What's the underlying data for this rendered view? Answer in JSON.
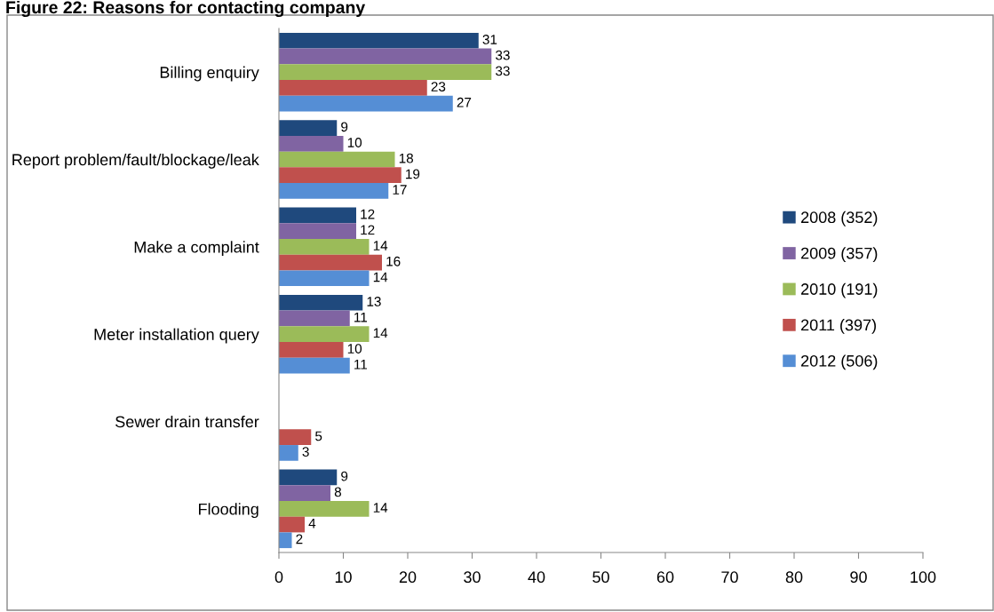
{
  "chart_data": {
    "type": "bar",
    "orientation": "horizontal",
    "title": "Figure 22: Reasons for contacting company",
    "categories": [
      "Billing enquiry",
      "Report problem/fault/blockage/leak",
      "Make a complaint",
      "Meter installation query",
      "Sewer drain transfer",
      "Flooding"
    ],
    "series": [
      {
        "name": "2008 (352)",
        "color": "#1f497d",
        "values": [
          31,
          9,
          12,
          13,
          null,
          9
        ]
      },
      {
        "name": "2009 (357)",
        "color": "#8064a2",
        "values": [
          33,
          10,
          12,
          11,
          null,
          8
        ]
      },
      {
        "name": "2010 (191)",
        "color": "#9bbb59",
        "values": [
          33,
          18,
          14,
          14,
          null,
          14
        ]
      },
      {
        "name": "2011 (397)",
        "color": "#c0504d",
        "values": [
          23,
          19,
          16,
          10,
          5,
          4
        ]
      },
      {
        "name": "2012 (506)",
        "color": "#558ed5",
        "values": [
          27,
          17,
          14,
          11,
          3,
          2
        ]
      }
    ],
    "xlim": [
      0,
      100
    ],
    "xticks": [
      0,
      10,
      20,
      30,
      40,
      50,
      60,
      70,
      80,
      90,
      100
    ],
    "data_labels": true,
    "grid": false,
    "legend": "right"
  }
}
